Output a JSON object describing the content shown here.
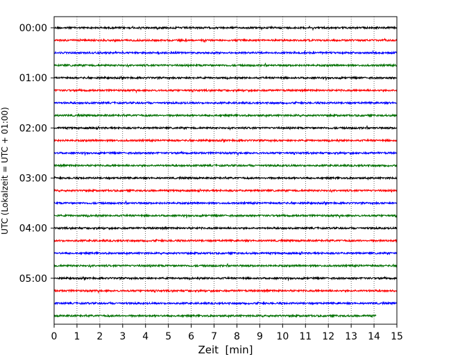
{
  "chart_data": {
    "type": "line",
    "title": "",
    "xlabel": "Zeit  [min]",
    "ylabel": "UTC (Lokalzeit = UTC + 01:00)",
    "xlim": [
      0,
      15
    ],
    "xticks": [
      "0",
      "1",
      "2",
      "3",
      "4",
      "5",
      "6",
      "7",
      "8",
      "9",
      "10",
      "11",
      "12",
      "13",
      "14",
      "15"
    ],
    "yticks": [
      "00:00",
      "01:00",
      "02:00",
      "03:00",
      "04:00",
      "05:00"
    ],
    "grid": "vertical dotted",
    "trace_colors": [
      "#000000",
      "#ff0000",
      "#0000ff",
      "#007000"
    ],
    "trace_count": 24,
    "trace_length_min": 15,
    "last_trace_length_min": 14.1,
    "legend": "none"
  }
}
